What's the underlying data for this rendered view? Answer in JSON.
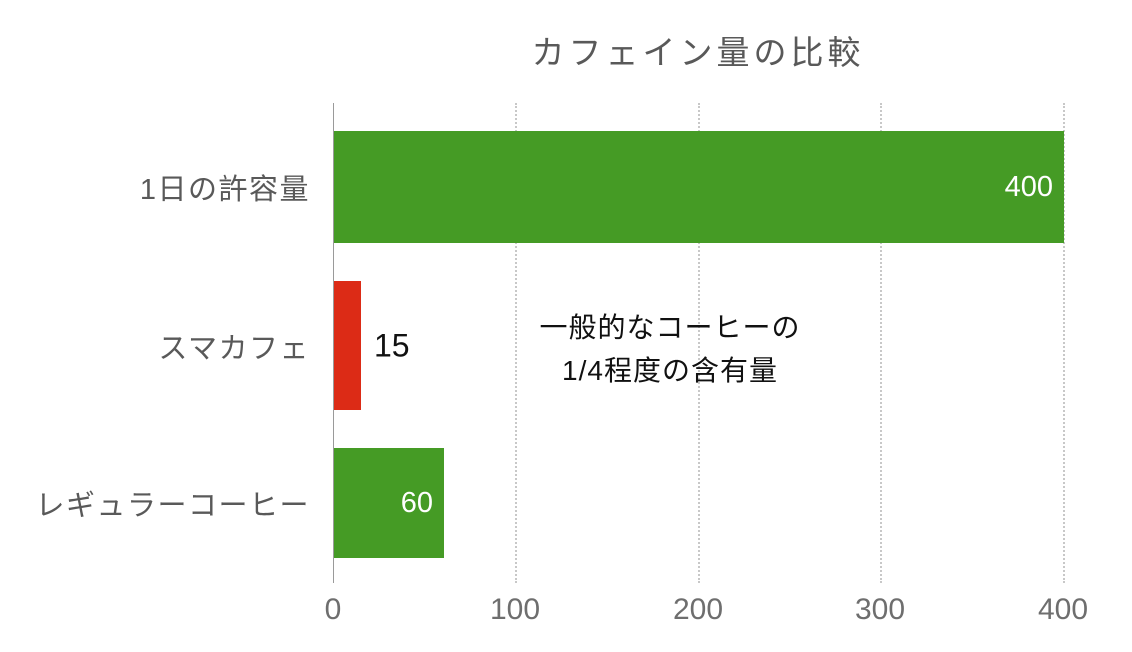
{
  "chart_data": {
    "type": "bar",
    "orientation": "horizontal",
    "title": "カフェイン量の比較",
    "categories": [
      "1日の許容量",
      "スマカフェ",
      "レギュラーコーヒー"
    ],
    "values": [
      400,
      15,
      60
    ],
    "bars": [
      {
        "category": "1日の許容量",
        "value": 400,
        "label": "400",
        "color": "#459B25",
        "label_color": "#FFFFFF",
        "label_position": "inside-end"
      },
      {
        "category": "スマカフェ",
        "value": 15,
        "label": "15",
        "color": "#DC2B16",
        "label_color": "#111111",
        "label_position": "outside-end"
      },
      {
        "category": "レギュラーコーヒー",
        "value": 60,
        "label": "60",
        "color": "#459B25",
        "label_color": "#FFFFFF",
        "label_position": "inside-end"
      }
    ],
    "x_ticks": [
      "0",
      "100",
      "200",
      "300",
      "400"
    ],
    "xlim": [
      0,
      400
    ],
    "xlabel": "",
    "ylabel": "",
    "grid": "vertical-dotted",
    "legend": "none",
    "annotation": {
      "line1": "一般的なコーヒーの",
      "line2": "1/4程度の含有量"
    }
  },
  "colors": {
    "bar_green": "#459B25",
    "bar_red": "#DC2B16",
    "title_text": "#595959",
    "category_text": "#595959",
    "tick_text": "#6E6E6E",
    "annotation_text": "#111111",
    "gridline": "#C8C8C8",
    "axis_line": "#9A9A9A",
    "background": "#FFFFFF"
  }
}
